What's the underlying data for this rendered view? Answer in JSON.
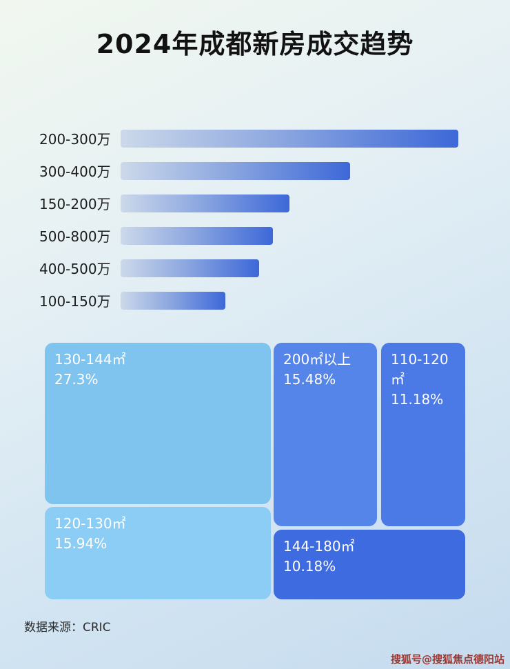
{
  "page": {
    "title": "2024年成都新房成交趋势",
    "source_label": "数据来源：CRIC",
    "watermark": "搜狐号@搜狐焦点德阳站"
  },
  "chart_data": [
    {
      "type": "bar",
      "orientation": "horizontal",
      "title": "2024年成都新房成交趋势",
      "categories": [
        "200-300万",
        "300-400万",
        "150-200万",
        "500-800万",
        "400-500万",
        "100-150万"
      ],
      "values": [
        100,
        68,
        50,
        45,
        41,
        31
      ],
      "values_note": "Bars carry no numeric labels; values are bar lengths as percent of the longest bar, estimated from pixels",
      "bar_gradient": [
        "#ccd9ea",
        "#3d68d8"
      ],
      "grid": false,
      "legend": "none"
    },
    {
      "type": "treemap",
      "items": [
        {
          "label": "130-144㎡",
          "percent": "27.3%",
          "value": 27.3,
          "color": "#7fc4ef"
        },
        {
          "label": "200㎡以上",
          "percent": "15.48%",
          "value": 15.48,
          "color": "#5585e9"
        },
        {
          "label": "110-120㎡",
          "percent": "11.18%",
          "value": 11.18,
          "color": "#4b79e6"
        },
        {
          "label": "120-130㎡",
          "percent": "15.94%",
          "value": 15.94,
          "color": "#8bcdf4"
        },
        {
          "label": "144-180㎡",
          "percent": "10.18%",
          "value": 10.18,
          "color": "#3e6bdf"
        }
      ]
    }
  ]
}
